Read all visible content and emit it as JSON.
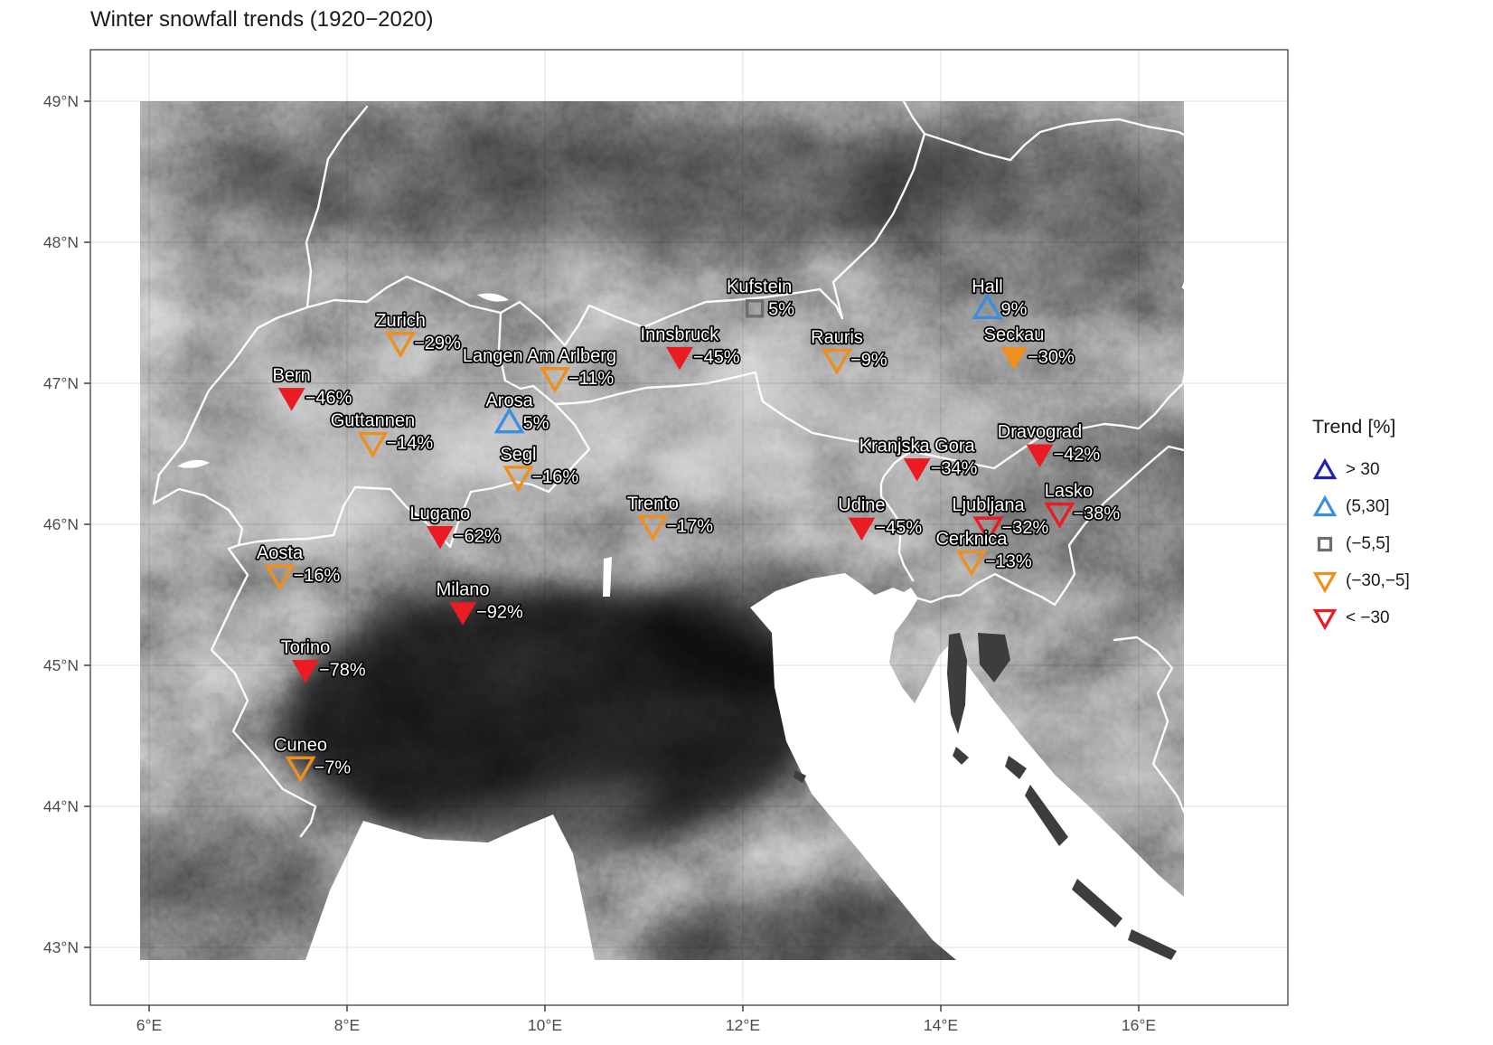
{
  "title": "Winter snowfall trends (1920−2020)",
  "legend": {
    "title": "Trend [%]",
    "items": [
      {
        "label": "> 30",
        "shape": "triangle-up",
        "color": "#2222b2",
        "filled": false
      },
      {
        "label": "(5,30]",
        "shape": "triangle-up",
        "color": "#3c8fe0",
        "filled": false
      },
      {
        "label": "(−5,5]",
        "shape": "square",
        "color": "#6e6e6e",
        "filled": false
      },
      {
        "label": "(−30,−5]",
        "shape": "triangle-down",
        "color": "#ef8f1f",
        "filled": false
      },
      {
        "label": "< −30",
        "shape": "triangle-down",
        "color": "#ea1b22",
        "filled": false
      }
    ]
  },
  "axes": {
    "x": {
      "ticks": [
        {
          "label": "6°E",
          "lon": 6
        },
        {
          "label": "8°E",
          "lon": 8
        },
        {
          "label": "10°E",
          "lon": 10
        },
        {
          "label": "12°E",
          "lon": 12
        },
        {
          "label": "14°E",
          "lon": 14
        },
        {
          "label": "16°E",
          "lon": 16
        }
      ]
    },
    "y": {
      "ticks": [
        {
          "label": "49°N",
          "lat": 49
        },
        {
          "label": "48°N",
          "lat": 48
        },
        {
          "label": "47°N",
          "lat": 47
        },
        {
          "label": "46°N",
          "lat": 46
        },
        {
          "label": "45°N",
          "lat": 45
        },
        {
          "label": "44°N",
          "lat": 44
        },
        {
          "label": "43°N",
          "lat": 43
        }
      ]
    }
  },
  "chart_data": {
    "type": "scatter",
    "title": "Winter snowfall trends (1920−2020)",
    "legend_title": "Trend [%]",
    "x_axis": {
      "label_format": "°E",
      "range": [
        5.4,
        17.5
      ],
      "grid": true
    },
    "y_axis": {
      "label_format": "°N",
      "range": [
        42.6,
        49.4
      ],
      "grid": true
    },
    "categories": [
      "> 30",
      "(5,30]",
      "(−5,5]",
      "(−30,−5]",
      "< −30"
    ],
    "styles": {
      "> 30": {
        "shape": "up",
        "color": "#2222b2"
      },
      "(5,30]": {
        "shape": "up",
        "color": "#3c8fe0"
      },
      "(−5,5]": {
        "shape": "square",
        "color": "#6e6e6e"
      },
      "(−30,−5]": {
        "shape": "down",
        "color": "#ef8f1f"
      },
      "< −30": {
        "shape": "down",
        "color": "#ea1b22"
      }
    },
    "stations": [
      {
        "name": "Zurich",
        "trend_pct": -29,
        "value_label": "−29%",
        "lon": 8.54,
        "lat": 47.29,
        "category": "(−30,−5]",
        "filled": false
      },
      {
        "name": "Bern",
        "trend_pct": -46,
        "value_label": "−46%",
        "lon": 7.44,
        "lat": 46.9,
        "category": "< −30",
        "filled": true
      },
      {
        "name": "Guttannen",
        "trend_pct": -14,
        "value_label": "−14%",
        "lon": 8.26,
        "lat": 46.58,
        "category": "(−30,−5]",
        "filled": false
      },
      {
        "name": "Langen Am Arlberg",
        "trend_pct": -11,
        "value_label": "−11%",
        "lon": 10.1,
        "lat": 47.04,
        "category": "(−30,−5]",
        "filled": false,
        "label_dx": -17
      },
      {
        "name": "Arosa",
        "trend_pct": 5,
        "value_label": "5%",
        "lon": 9.64,
        "lat": 46.72,
        "category": "(5,30]",
        "filled": false
      },
      {
        "name": "Segl",
        "trend_pct": -16,
        "value_label": "−16%",
        "lon": 9.73,
        "lat": 46.34,
        "category": "(−30,−5]",
        "filled": false
      },
      {
        "name": "Innsbruck",
        "trend_pct": -45,
        "value_label": "−45%",
        "lon": 11.36,
        "lat": 47.19,
        "category": "< −30",
        "filled": true
      },
      {
        "name": "Kufstein",
        "trend_pct": 5,
        "value_label": "5%",
        "lon": 12.12,
        "lat": 47.53,
        "category": "(−5,5]",
        "filled": false,
        "label_dx": 5
      },
      {
        "name": "Rauris",
        "trend_pct": -9,
        "value_label": "−9%",
        "lon": 12.95,
        "lat": 47.17,
        "category": "(−30,−5]",
        "filled": false
      },
      {
        "name": "Hall",
        "trend_pct": 9,
        "value_label": "9%",
        "lon": 14.47,
        "lat": 47.53,
        "category": "(5,30]",
        "filled": false
      },
      {
        "name": "Seckau",
        "trend_pct": -30,
        "value_label": "−30%",
        "lon": 14.74,
        "lat": 47.19,
        "category": "(−30,−5]",
        "filled": true
      },
      {
        "name": "Dravograd",
        "trend_pct": -42,
        "value_label": "−42%",
        "lon": 15.0,
        "lat": 46.5,
        "category": "< −30",
        "filled": true
      },
      {
        "name": "Kranjska Gora",
        "trend_pct": -34,
        "value_label": "−34%",
        "lon": 13.76,
        "lat": 46.4,
        "category": "< −30",
        "filled": true
      },
      {
        "name": "Udine",
        "trend_pct": -45,
        "value_label": "−45%",
        "lon": 13.2,
        "lat": 45.98,
        "category": "< −30",
        "filled": true
      },
      {
        "name": "Ljubljana",
        "trend_pct": -32,
        "value_label": "−32%",
        "lon": 14.48,
        "lat": 45.98,
        "category": "< −30",
        "filled": false
      },
      {
        "name": "Lasko",
        "trend_pct": -38,
        "value_label": "−38%",
        "lon": 15.2,
        "lat": 46.08,
        "category": "< −30",
        "filled": false,
        "label_dx": 10
      },
      {
        "name": "Cerknica",
        "trend_pct": -13,
        "value_label": "−13%",
        "lon": 14.31,
        "lat": 45.74,
        "category": "(−30,−5]",
        "filled": false
      },
      {
        "name": "Trento",
        "trend_pct": -17,
        "value_label": "−17%",
        "lon": 11.09,
        "lat": 45.99,
        "category": "(−30,−5]",
        "filled": false
      },
      {
        "name": "Lugano",
        "trend_pct": -62,
        "value_label": "−62%",
        "lon": 8.94,
        "lat": 45.92,
        "category": "< −30",
        "filled": true
      },
      {
        "name": "Milano",
        "trend_pct": -92,
        "value_label": "−92%",
        "lon": 9.17,
        "lat": 45.38,
        "category": "< −30",
        "filled": true
      },
      {
        "name": "Aosta",
        "trend_pct": -16,
        "value_label": "−16%",
        "lon": 7.32,
        "lat": 45.64,
        "category": "(−30,−5]",
        "filled": false
      },
      {
        "name": "Torino",
        "trend_pct": -78,
        "value_label": "−78%",
        "lon": 7.58,
        "lat": 44.97,
        "category": "< −30",
        "filled": true
      },
      {
        "name": "Cuneo",
        "trend_pct": -7,
        "value_label": "−7%",
        "lon": 7.53,
        "lat": 44.28,
        "category": "(−30,−5]",
        "filled": false
      }
    ]
  }
}
